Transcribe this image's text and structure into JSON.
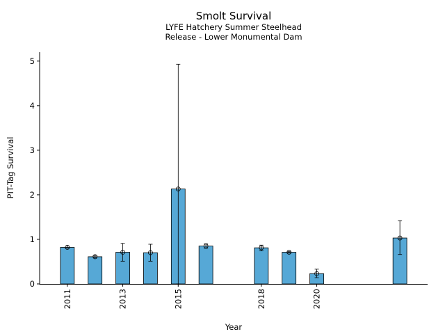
{
  "chart_data": {
    "type": "bar",
    "title": "Smolt Survival",
    "subtitle_lines": [
      "LYFE Hatchery Summer Steelhead",
      "Release - Lower Monumental Dam"
    ],
    "xlabel": "Year",
    "ylabel": "PIT-Tag Survival",
    "x_ticks": [
      2011,
      2013,
      2015,
      2018,
      2020
    ],
    "y_ticks": [
      0,
      1,
      2,
      3,
      4,
      5
    ],
    "xlim": [
      2010.0,
      2024.0
    ],
    "ylim": [
      0,
      5.2
    ],
    "bar_width_years": 0.5,
    "series": [
      {
        "x": [
          2011,
          2012,
          2013,
          2014,
          2015,
          2016,
          2018,
          2019,
          2020,
          2023
        ],
        "values": [
          0.82,
          0.61,
          0.71,
          0.7,
          2.13,
          0.85,
          0.81,
          0.71,
          0.23,
          1.03
        ],
        "err_low": [
          0.8,
          0.59,
          0.51,
          0.51,
          0.0,
          0.8,
          0.74,
          0.69,
          0.14,
          0.66
        ],
        "err_high": [
          0.85,
          0.64,
          0.91,
          0.89,
          4.93,
          0.9,
          0.87,
          0.73,
          0.33,
          1.42
        ]
      }
    ],
    "grid": false,
    "colors": {
      "bar": "#56a8d6",
      "bar_edge": "#000000",
      "error": "#000000"
    }
  }
}
